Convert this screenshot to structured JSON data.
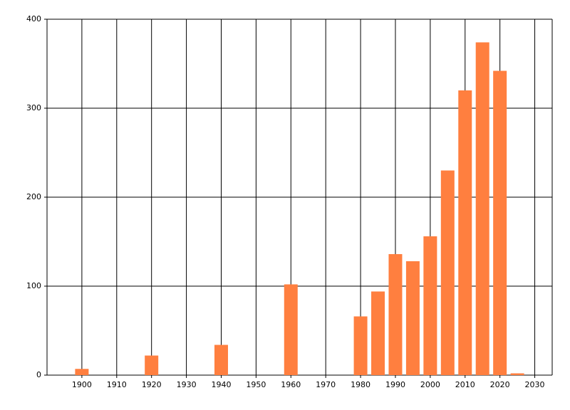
{
  "chart_data": {
    "type": "bar",
    "x": [
      1900,
      1920,
      1940,
      1960,
      1980,
      1985,
      1990,
      1995,
      2000,
      2005,
      2010,
      2015,
      2020,
      2025
    ],
    "values": [
      7,
      22,
      34,
      102,
      66,
      94,
      136,
      128,
      156,
      230,
      320,
      374,
      342,
      2
    ],
    "color": "#ff7f3f",
    "xlim": [
      1890,
      2035
    ],
    "xticks": [
      1900,
      1910,
      1920,
      1930,
      1940,
      1950,
      1960,
      1970,
      1980,
      1990,
      2000,
      2010,
      2020,
      2030
    ],
    "ylim": [
      0,
      400
    ],
    "yticks": [
      0,
      100,
      200,
      300,
      400
    ],
    "grid": true
  }
}
